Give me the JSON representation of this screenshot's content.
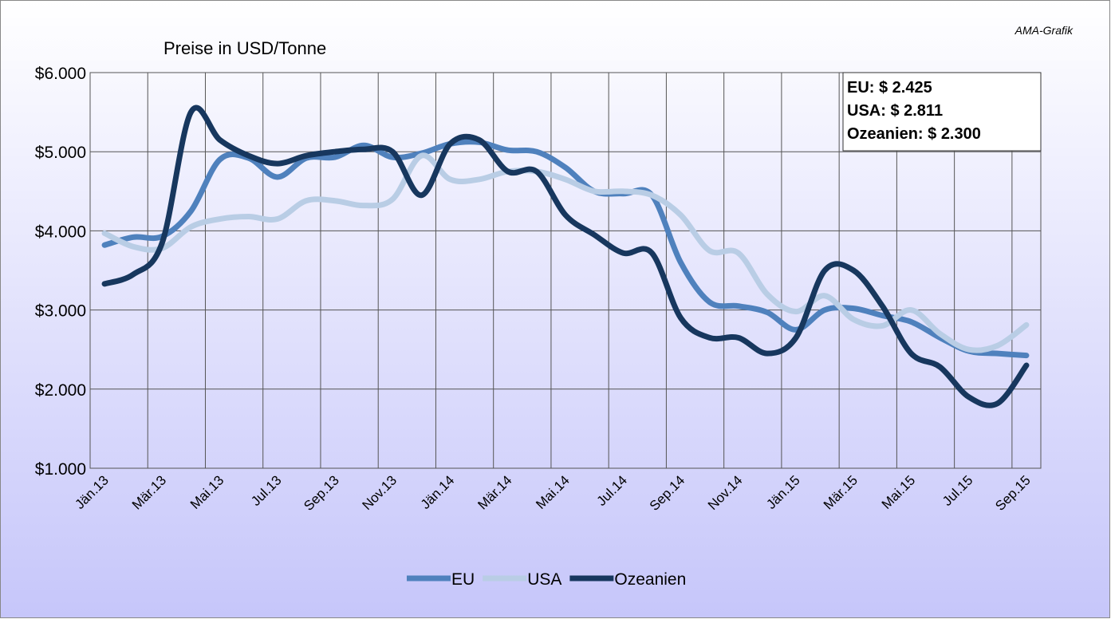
{
  "chart_data": {
    "type": "line",
    "title": "Preise in USD/Tonne",
    "source": "AMA-Grafik",
    "annotations": [
      "EU: $ 2.425",
      "USA: $ 2.811",
      "Ozeanien: $ 2.300"
    ],
    "categories": [
      "Jän.13",
      null,
      "Mär.13",
      null,
      "Mai.13",
      null,
      "Jul.13",
      null,
      "Sep.13",
      null,
      "Nov.13",
      null,
      "Jän.14",
      null,
      "Mär.14",
      null,
      "Mai.14",
      null,
      "Jul.14",
      null,
      "Sep.14",
      null,
      "Nov.14",
      null,
      "Jän.15",
      null,
      "Mär.15",
      null,
      "Mai.15",
      null,
      "Jul.15",
      null,
      "Sep.15"
    ],
    "series": [
      {
        "name": "EU",
        "color": "#4f81bd",
        "values": [
          3820,
          3920,
          3930,
          4250,
          4900,
          4920,
          4680,
          4920,
          4930,
          5080,
          4930,
          4980,
          5100,
          5120,
          5020,
          5000,
          4800,
          4500,
          4470,
          4450,
          3600,
          3100,
          3050,
          2970,
          2750,
          3000,
          3020,
          2930,
          2850,
          2650,
          2480,
          2450,
          2425
        ]
      },
      {
        "name": "USA",
        "color": "#b9cde5",
        "values": [
          3970,
          3800,
          3780,
          4050,
          4150,
          4180,
          4150,
          4380,
          4380,
          4320,
          4400,
          4950,
          4650,
          4650,
          4750,
          4750,
          4650,
          4500,
          4500,
          4450,
          4200,
          3750,
          3720,
          3200,
          2980,
          3180,
          2880,
          2800,
          3000,
          2700,
          2500,
          2550,
          2811
        ]
      },
      {
        "name": "Ozeanien",
        "color": "#17375e",
        "values": [
          3330,
          3450,
          3850,
          5500,
          5150,
          4950,
          4850,
          4950,
          5000,
          5030,
          5000,
          4450,
          5100,
          5150,
          4750,
          4750,
          4200,
          3950,
          3720,
          3720,
          2900,
          2650,
          2650,
          2450,
          2650,
          3500,
          3500,
          3050,
          2450,
          2280,
          1900,
          1820,
          2300
        ]
      }
    ],
    "ylim": [
      1000,
      6000
    ],
    "yticks": [
      {
        "value": 1000,
        "label": "$1.000"
      },
      {
        "value": 2000,
        "label": "$2.000"
      },
      {
        "value": 3000,
        "label": "$3.000"
      },
      {
        "value": 4000,
        "label": "$4.000"
      },
      {
        "value": 5000,
        "label": "$5.000"
      },
      {
        "value": 6000,
        "label": "$6.000"
      }
    ],
    "grid": true,
    "legend": "bottom"
  }
}
